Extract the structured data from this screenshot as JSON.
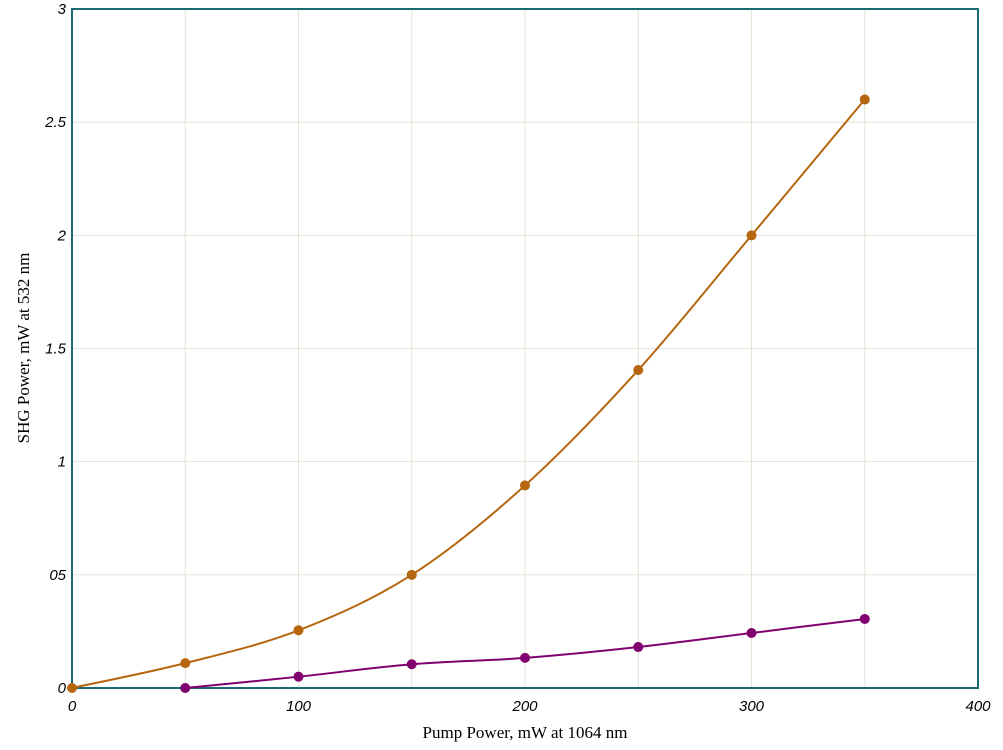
{
  "chart_data": {
    "type": "line",
    "xlabel": "Pump Power, mW at 1064 nm",
    "ylabel": "SHG Power, mW at 532 nm",
    "x": [
      0,
      50,
      100,
      150,
      200,
      250,
      300,
      350
    ],
    "series": [
      {
        "color": "#b5660f",
        "values": [
          0,
          0.11,
          0.255,
          0.5,
          0.895,
          1.405,
          2.0,
          2.6
        ]
      },
      {
        "color": "#800070",
        "values": [
          null,
          0,
          0.05,
          0.105,
          0.133,
          0.181,
          0.243,
          0.305
        ]
      }
    ],
    "xlim": [
      0,
      400
    ],
    "xticks": [
      0,
      100,
      200,
      300,
      400
    ],
    "ylim": [
      0,
      3
    ],
    "yticks": [
      0,
      {
        "value": 0.5,
        "label": "05"
      },
      1,
      1.5,
      2,
      2.5,
      3
    ],
    "grid": true,
    "smooth": true
  }
}
